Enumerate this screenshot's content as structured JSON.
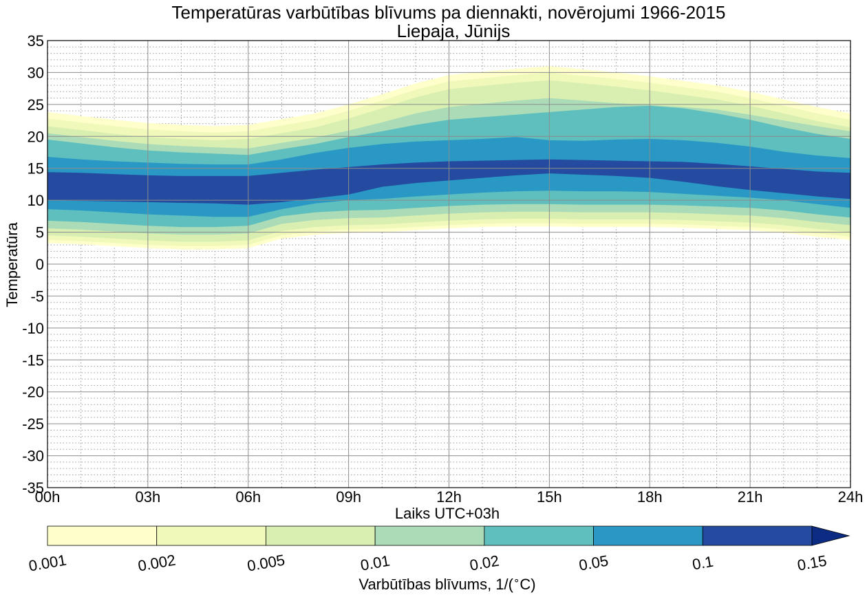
{
  "chart_data": {
    "type": "contourf",
    "title": "Temperatūras varbūtības blīvums pa diennakti, novērojumi 1966-2015",
    "subtitle": "Liepaja, Jūnijs",
    "xlabel": "Laiks UTC+03h",
    "ylabel": "Temperatūra",
    "xlim": [
      0,
      24
    ],
    "ylim": [
      -35,
      35
    ],
    "x_ticks": [
      0,
      3,
      6,
      9,
      12,
      15,
      18,
      21,
      24
    ],
    "x_tick_labels": [
      "00h",
      "03h",
      "06h",
      "09h",
      "12h",
      "15h",
      "18h",
      "21h",
      "24h"
    ],
    "y_ticks": [
      35,
      30,
      25,
      20,
      15,
      10,
      5,
      0,
      -5,
      -10,
      -15,
      -20,
      -25,
      -30,
      -35
    ],
    "y_tick_labels": [
      "35",
      "30",
      "25",
      "20",
      "15",
      "10",
      "5",
      "0",
      "-5",
      "-10",
      "-15",
      "-20",
      "-25",
      "-30",
      "-35"
    ],
    "grid": true,
    "hours": [
      0,
      1,
      2,
      3,
      4,
      5,
      6,
      7,
      8,
      9,
      10,
      11,
      12,
      13,
      14,
      15,
      16,
      17,
      18,
      19,
      20,
      21,
      22,
      23,
      24
    ],
    "levels": [
      {
        "threshold": 0.001,
        "color": "#ffffcc",
        "lower": [
          3.3,
          3.1,
          2.8,
          2.5,
          2.3,
          2.3,
          2.5,
          4.0,
          4.6,
          4.9,
          5.0,
          5.3,
          5.6,
          5.8,
          5.9,
          5.9,
          5.8,
          5.8,
          5.8,
          5.7,
          5.5,
          5.3,
          4.9,
          4.3,
          3.8
        ],
        "upper": [
          23.8,
          23.2,
          22.6,
          22.1,
          21.8,
          21.6,
          21.8,
          22.7,
          23.6,
          25.0,
          26.6,
          28.3,
          29.6,
          30.1,
          30.6,
          31.0,
          30.5,
          30.0,
          29.4,
          28.7,
          28.0,
          27.0,
          25.8,
          24.6,
          23.6
        ]
      },
      {
        "threshold": 0.002,
        "color": "#f0f9b9",
        "lower": [
          3.8,
          3.6,
          3.3,
          3.0,
          2.8,
          2.8,
          3.0,
          4.5,
          5.1,
          5.4,
          5.5,
          5.8,
          6.1,
          6.3,
          6.4,
          6.4,
          6.3,
          6.3,
          6.3,
          6.2,
          6.0,
          5.8,
          5.4,
          4.8,
          4.3
        ],
        "upper": [
          22.8,
          22.2,
          21.6,
          21.1,
          20.8,
          20.6,
          20.8,
          21.7,
          22.6,
          24.0,
          25.6,
          27.3,
          28.6,
          29.1,
          29.6,
          30.0,
          29.5,
          29.0,
          28.4,
          27.7,
          27.0,
          26.0,
          24.8,
          23.6,
          22.6
        ]
      },
      {
        "threshold": 0.005,
        "color": "#d9efb2",
        "lower": [
          4.5,
          4.3,
          4.0,
          3.7,
          3.5,
          3.5,
          3.7,
          5.2,
          5.8,
          6.1,
          6.2,
          6.5,
          6.8,
          7.0,
          7.1,
          7.1,
          7.0,
          7.0,
          7.0,
          6.9,
          6.7,
          6.5,
          6.1,
          5.5,
          5.0
        ],
        "upper": [
          21.6,
          21.0,
          20.4,
          19.9,
          19.6,
          19.4,
          19.6,
          20.5,
          21.4,
          22.8,
          24.4,
          26.1,
          27.4,
          27.9,
          28.4,
          28.8,
          28.3,
          27.8,
          27.2,
          26.5,
          25.8,
          24.8,
          23.6,
          22.4,
          21.4
        ]
      },
      {
        "threshold": 0.01,
        "color": "#abdcb7",
        "lower": [
          5.6,
          5.4,
          5.1,
          4.8,
          4.6,
          4.6,
          4.8,
          6.3,
          6.9,
          7.2,
          7.3,
          7.6,
          7.9,
          8.1,
          8.2,
          8.2,
          8.1,
          8.1,
          8.1,
          8.0,
          7.8,
          7.6,
          7.2,
          6.6,
          6.1
        ],
        "upper": [
          20.5,
          19.9,
          19.3,
          18.8,
          18.5,
          18.3,
          18.1,
          19.0,
          19.8,
          20.9,
          22.2,
          23.6,
          24.6,
          25.1,
          25.6,
          26.0,
          25.6,
          25.2,
          24.9,
          24.6,
          24.2,
          23.4,
          22.5,
          21.6,
          20.8
        ]
      },
      {
        "threshold": 0.02,
        "color": "#5ebfbe",
        "lower": [
          6.8,
          6.6,
          6.3,
          6.0,
          5.8,
          5.8,
          6.0,
          7.5,
          8.1,
          8.4,
          8.5,
          8.8,
          9.1,
          9.3,
          9.4,
          9.4,
          9.3,
          9.3,
          9.3,
          9.2,
          9.0,
          8.8,
          8.4,
          7.8,
          7.3
        ],
        "upper": [
          19.5,
          18.9,
          18.3,
          17.8,
          17.5,
          17.3,
          17.1,
          18.0,
          18.8,
          19.9,
          20.8,
          21.8,
          22.6,
          23.0,
          23.4,
          23.8,
          24.2,
          24.6,
          24.8,
          24.4,
          23.6,
          22.6,
          21.4,
          20.4,
          19.6
        ]
      },
      {
        "threshold": 0.05,
        "color": "#2a98c4",
        "lower": [
          8.6,
          8.4,
          8.1,
          7.8,
          7.6,
          7.4,
          7.4,
          8.6,
          9.5,
          10.0,
          10.2,
          10.6,
          10.9,
          11.2,
          11.4,
          11.5,
          11.4,
          11.4,
          11.3,
          11.0,
          10.7,
          10.4,
          10.0,
          9.4,
          8.8
        ],
        "upper": [
          16.8,
          16.4,
          16.1,
          15.9,
          15.7,
          15.6,
          15.6,
          16.4,
          17.4,
          18.2,
          18.8,
          19.2,
          19.4,
          19.6,
          19.9,
          19.4,
          19.3,
          19.5,
          19.6,
          19.4,
          19.0,
          18.4,
          17.6,
          17.0,
          16.6
        ]
      },
      {
        "threshold": 0.1,
        "color": "#244b9f",
        "lower": [
          10.0,
          9.9,
          9.8,
          9.7,
          9.6,
          9.5,
          9.3,
          9.7,
          10.3,
          10.9,
          12.1,
          12.7,
          13.1,
          13.5,
          13.9,
          14.2,
          14.0,
          13.8,
          13.5,
          12.9,
          12.2,
          11.6,
          11.1,
          10.6,
          10.2
        ],
        "upper": [
          14.4,
          14.3,
          14.1,
          13.9,
          13.8,
          13.8,
          13.8,
          14.3,
          14.8,
          15.2,
          15.6,
          15.9,
          16.1,
          16.2,
          16.3,
          16.4,
          16.3,
          16.2,
          16.1,
          16.0,
          15.7,
          15.3,
          14.9,
          14.5,
          14.3
        ]
      }
    ],
    "colorbar": {
      "label": "Varbūtības blīvums, 1/($^\\circ$C)",
      "ticks": [
        "0.001",
        "0.002",
        "0.005",
        "0.01",
        "0.02",
        "0.05",
        "0.1",
        "0.15"
      ],
      "colors": [
        "#ffffcc",
        "#f0f9b9",
        "#d9efb2",
        "#abdcb7",
        "#5ebfbe",
        "#2a98c4",
        "#244b9f"
      ],
      "extend_color": "#0c2c84",
      "extend": "max"
    }
  }
}
